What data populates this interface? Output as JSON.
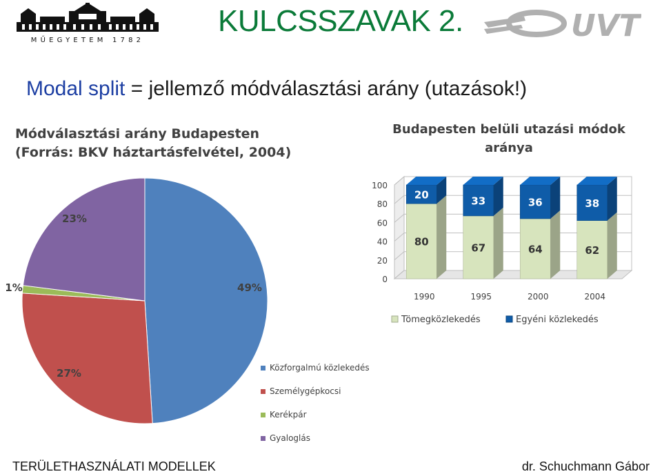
{
  "header": {
    "title": "KULCSSZAVAK 2.",
    "bme_logo_text": "MŰEGYETEM 1782",
    "uvt_logo_text": "UVT"
  },
  "subtitle": {
    "part1": "Modal split",
    "part2": " = jellemző módválasztási arány (utazások!)"
  },
  "footer": {
    "left": "TERÜLETHASZNÁLATI MODELLEK",
    "right": "dr. Schuchmann Gábor"
  },
  "colors": {
    "title_green": "#0a7a38",
    "subtitle_blue": "#1d3fa3",
    "pie_blue": "#4f81bd",
    "pie_red": "#c0504d",
    "pie_green": "#9bbb59",
    "pie_purple": "#8064a2",
    "bar_light_green": "#d7e4bd",
    "bar_dark_blue": "#0f5ca8"
  },
  "chart_data": [
    {
      "type": "pie",
      "title_line1": "Módválasztási arány Budapesten",
      "title_line2": "(Forrás: BKV háztartásfelvétel, 2004)",
      "categories": [
        "Közforgalmú közlekedés",
        "Személygépkocsi",
        "Kerékpár",
        "Gyaloglás"
      ],
      "values": [
        49,
        27,
        1,
        23
      ],
      "labels": [
        "49%",
        "27%",
        "1%",
        "23%"
      ],
      "legend_position": "bottom-right"
    },
    {
      "type": "bar",
      "stacked": true,
      "three_d": true,
      "title_line1": "Budapesten belüli utazási módok",
      "title_line2": "aránya",
      "categories": [
        "1990",
        "1995",
        "2000",
        "2004"
      ],
      "series": [
        {
          "name": "Tömegközlekedés",
          "values": [
            80,
            67,
            64,
            62
          ]
        },
        {
          "name": "Egyéni közlekedés",
          "values": [
            20,
            33,
            36,
            38
          ]
        }
      ],
      "ylim": [
        0,
        100
      ],
      "yticks": [
        0,
        20,
        40,
        60,
        80,
        100
      ],
      "grid": true,
      "legend_position": "bottom"
    }
  ]
}
